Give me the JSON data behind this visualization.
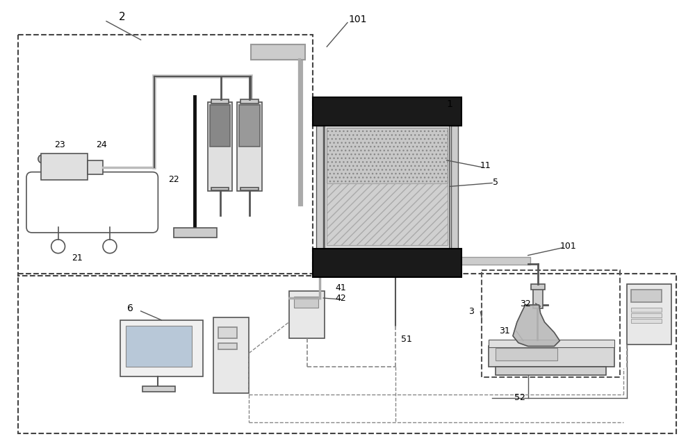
{
  "bg": "#ffffff",
  "lc": "#555555",
  "dc": "#1a1a1a",
  "gc": "#888888",
  "lgc": "#aaaaaa",
  "pipe_color": "#999999",
  "pipe_fill": "#cccccc"
}
